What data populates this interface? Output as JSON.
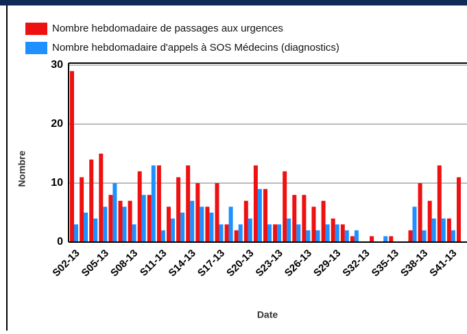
{
  "chart_data": {
    "type": "bar",
    "y_label": "Nombre",
    "x_label": "Date",
    "categories": [
      "S02-13",
      null,
      null,
      "S05-13",
      null,
      null,
      "S08-13",
      null,
      null,
      "S11-13",
      null,
      null,
      "S14-13",
      null,
      null,
      "S17-13",
      null,
      null,
      "S20-13",
      null,
      null,
      "S23-13",
      null,
      null,
      "S26-13",
      null,
      null,
      "S29-13",
      null,
      null,
      "S32-13",
      null,
      null,
      "S35-13",
      null,
      null,
      "S38-13",
      null,
      null,
      "S41-13",
      null
    ],
    "series": [
      {
        "name": "Nombre hebdomadaire de passages aux urgences",
        "color": "#ee1111",
        "values": [
          29,
          11,
          14,
          15,
          8,
          7,
          7,
          12,
          8,
          13,
          6,
          11,
          13,
          10,
          6,
          10,
          3,
          2,
          7,
          13,
          9,
          3,
          12,
          8,
          8,
          6,
          7,
          4,
          3,
          1,
          0,
          1,
          0,
          1,
          0,
          2,
          10,
          7,
          13,
          4,
          11
        ]
      },
      {
        "name": "Nombre hebdomadaire d'appels à SOS Médecins (diagnostics)",
        "color": "#1e90ff",
        "values": [
          3,
          5,
          4,
          6,
          10,
          6,
          3,
          8,
          13,
          2,
          4,
          5,
          7,
          6,
          5,
          3,
          6,
          3,
          4,
          9,
          3,
          3,
          4,
          3,
          2,
          2,
          3,
          3,
          2,
          2,
          0,
          0,
          1,
          0,
          0,
          6,
          2,
          4,
          4,
          2,
          0
        ]
      }
    ],
    "ylim": [
      0,
      30
    ],
    "yticks": [
      0,
      10,
      20,
      30
    ],
    "grid": true
  }
}
